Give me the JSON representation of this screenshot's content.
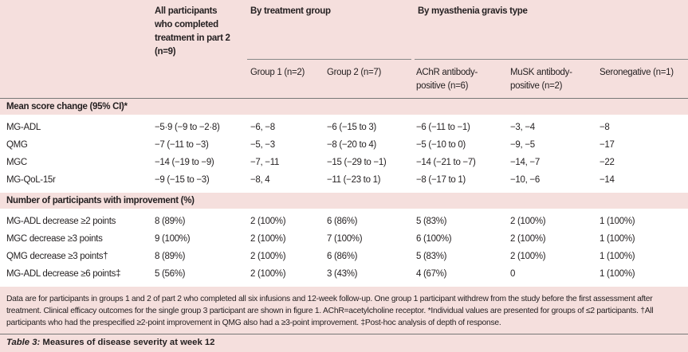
{
  "header": {
    "all": "All participants who completed treatment in part 2 (n=9)",
    "by_treatment": "By treatment group",
    "by_mg_type": "By myasthenia gravis type",
    "columns": [
      "Group 1 (n=2)",
      "Group 2 (n=7)",
      "AChR antibody-positive (n=6)",
      "MuSK antibody-positive (n=2)",
      "Seronegative (n=1)"
    ]
  },
  "sections": [
    {
      "title": "Mean score change (95% CI)*",
      "rows": [
        {
          "label": "MG-ADL",
          "values": [
            "−5·9 (−9 to −2·8)",
            "−6, −8",
            "−6 (−15 to 3)",
            "−6 (−11 to −1)",
            "−3, −4",
            "−8"
          ]
        },
        {
          "label": "QMG",
          "values": [
            "−7 (−11 to −3)",
            "−5, −3",
            "−8 (−20 to 4)",
            "−5 (−10 to 0)",
            "−9, −5",
            "−17"
          ]
        },
        {
          "label": "MGC",
          "values": [
            "−14 (−19 to −9)",
            "−7, −11",
            "−15 (−29 to −1)",
            "−14 (−21 to −7)",
            "−14, −7",
            "−22"
          ]
        },
        {
          "label": "MG-QoL-15r",
          "values": [
            "−9 (−15 to −3)",
            "−8, 4",
            "−11 (−23 to 1)",
            "−8 (−17 to 1)",
            "−10, −6",
            "−14"
          ]
        }
      ]
    },
    {
      "title": "Number of participants with improvement (%)",
      "rows": [
        {
          "label": "MG-ADL decrease ≥2 points",
          "values": [
            "8 (89%)",
            "2 (100%)",
            "6 (86%)",
            "5 (83%)",
            "2 (100%)",
            "1 (100%)"
          ]
        },
        {
          "label": "MGC decrease ≥3 points",
          "values": [
            "9 (100%)",
            "2 (100%)",
            "7 (100%)",
            "6 (100%)",
            "2 (100%)",
            "1 (100%)"
          ]
        },
        {
          "label": "QMG decrease ≥3 points†",
          "values": [
            "8 (89%)",
            "2 (100%)",
            "6 (86%)",
            "5 (83%)",
            "2 (100%)",
            "1 (100%)"
          ]
        },
        {
          "label": "MG-ADL decrease ≥6 points‡",
          "values": [
            "5 (56%)",
            "2 (100%)",
            "3 (43%)",
            "4 (67%)",
            "0",
            "1 (100%)"
          ]
        }
      ]
    }
  ],
  "footnote": "Data are for participants in groups 1 and 2 of part 2 who completed all six infusions and 12-week follow-up. One group 1 participant withdrew from the study before the first assessment after treatment. Clinical efficacy outcomes for the single group 3 participant are shown in figure 1. AChR=acetylcholine receptor. *Individual values are presented for groups of ≤2 participants. †All participants who had the prespecified ≥2-point improvement in QMG also had a ≥3-point improvement. ‡Post-hoc analysis of depth of response.",
  "caption": {
    "label": "Table 3:",
    "text": " Measures of disease severity at week 12"
  },
  "colors": {
    "background": "#f5dfdd",
    "row_background": "#ffffff"
  }
}
